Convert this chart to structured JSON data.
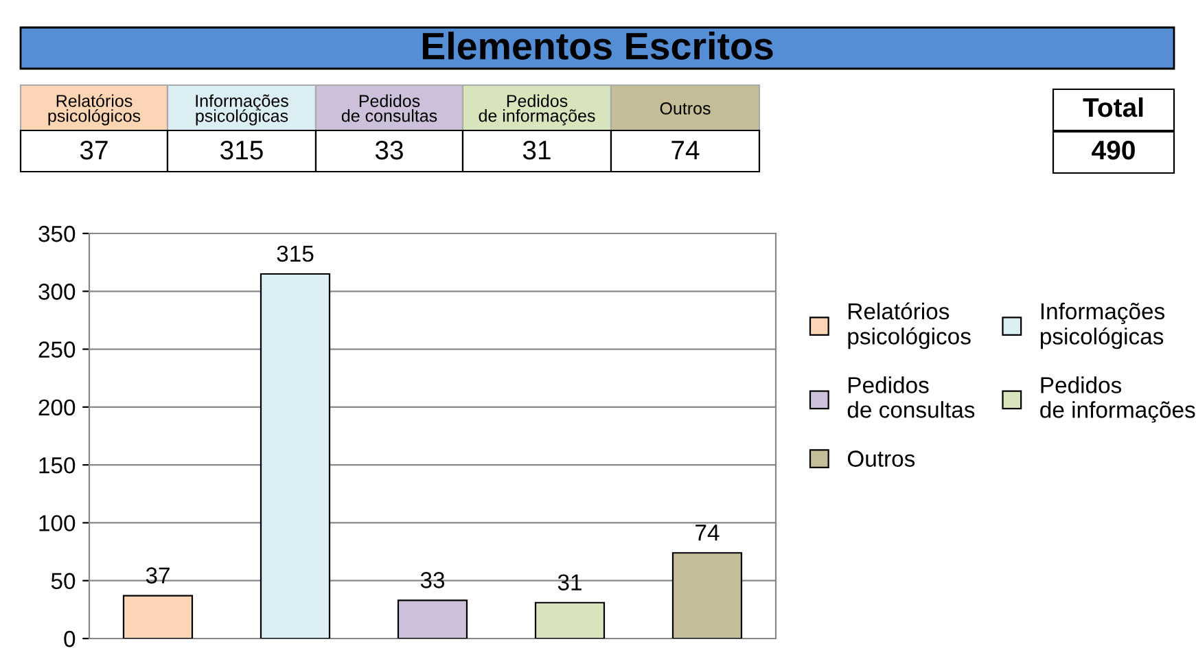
{
  "chart_data": {
    "type": "bar",
    "title": "Elementos Escritos",
    "categories": [
      null,
      null,
      null,
      null,
      null
    ],
    "series": [
      {
        "name": "Relatórios psicológicos",
        "color": "#fcd5b4",
        "values": [
          37,
          null,
          null,
          null,
          null
        ]
      },
      {
        "name": "Informações psicológicas",
        "color": "#daeef3",
        "values": [
          null,
          315,
          null,
          null,
          null
        ]
      },
      {
        "name": "Pedidos de consultas",
        "color": "#ccc0da",
        "values": [
          null,
          null,
          33,
          null,
          null
        ]
      },
      {
        "name": "Pedidos de informações",
        "color": "#d8e4bc",
        "values": [
          null,
          null,
          null,
          31,
          null
        ]
      },
      {
        "name": "Outros",
        "color": "#c4bd97",
        "values": [
          null,
          null,
          null,
          null,
          74
        ]
      }
    ],
    "ylim": [
      0,
      350
    ],
    "yticks": [
      0,
      50,
      100,
      150,
      200,
      250,
      300,
      350
    ],
    "grid": "y",
    "legend": "right",
    "data_labels": true,
    "annotations": [
      "37",
      "315",
      "33",
      "31",
      "74",
      "Total",
      "490"
    ]
  }
}
